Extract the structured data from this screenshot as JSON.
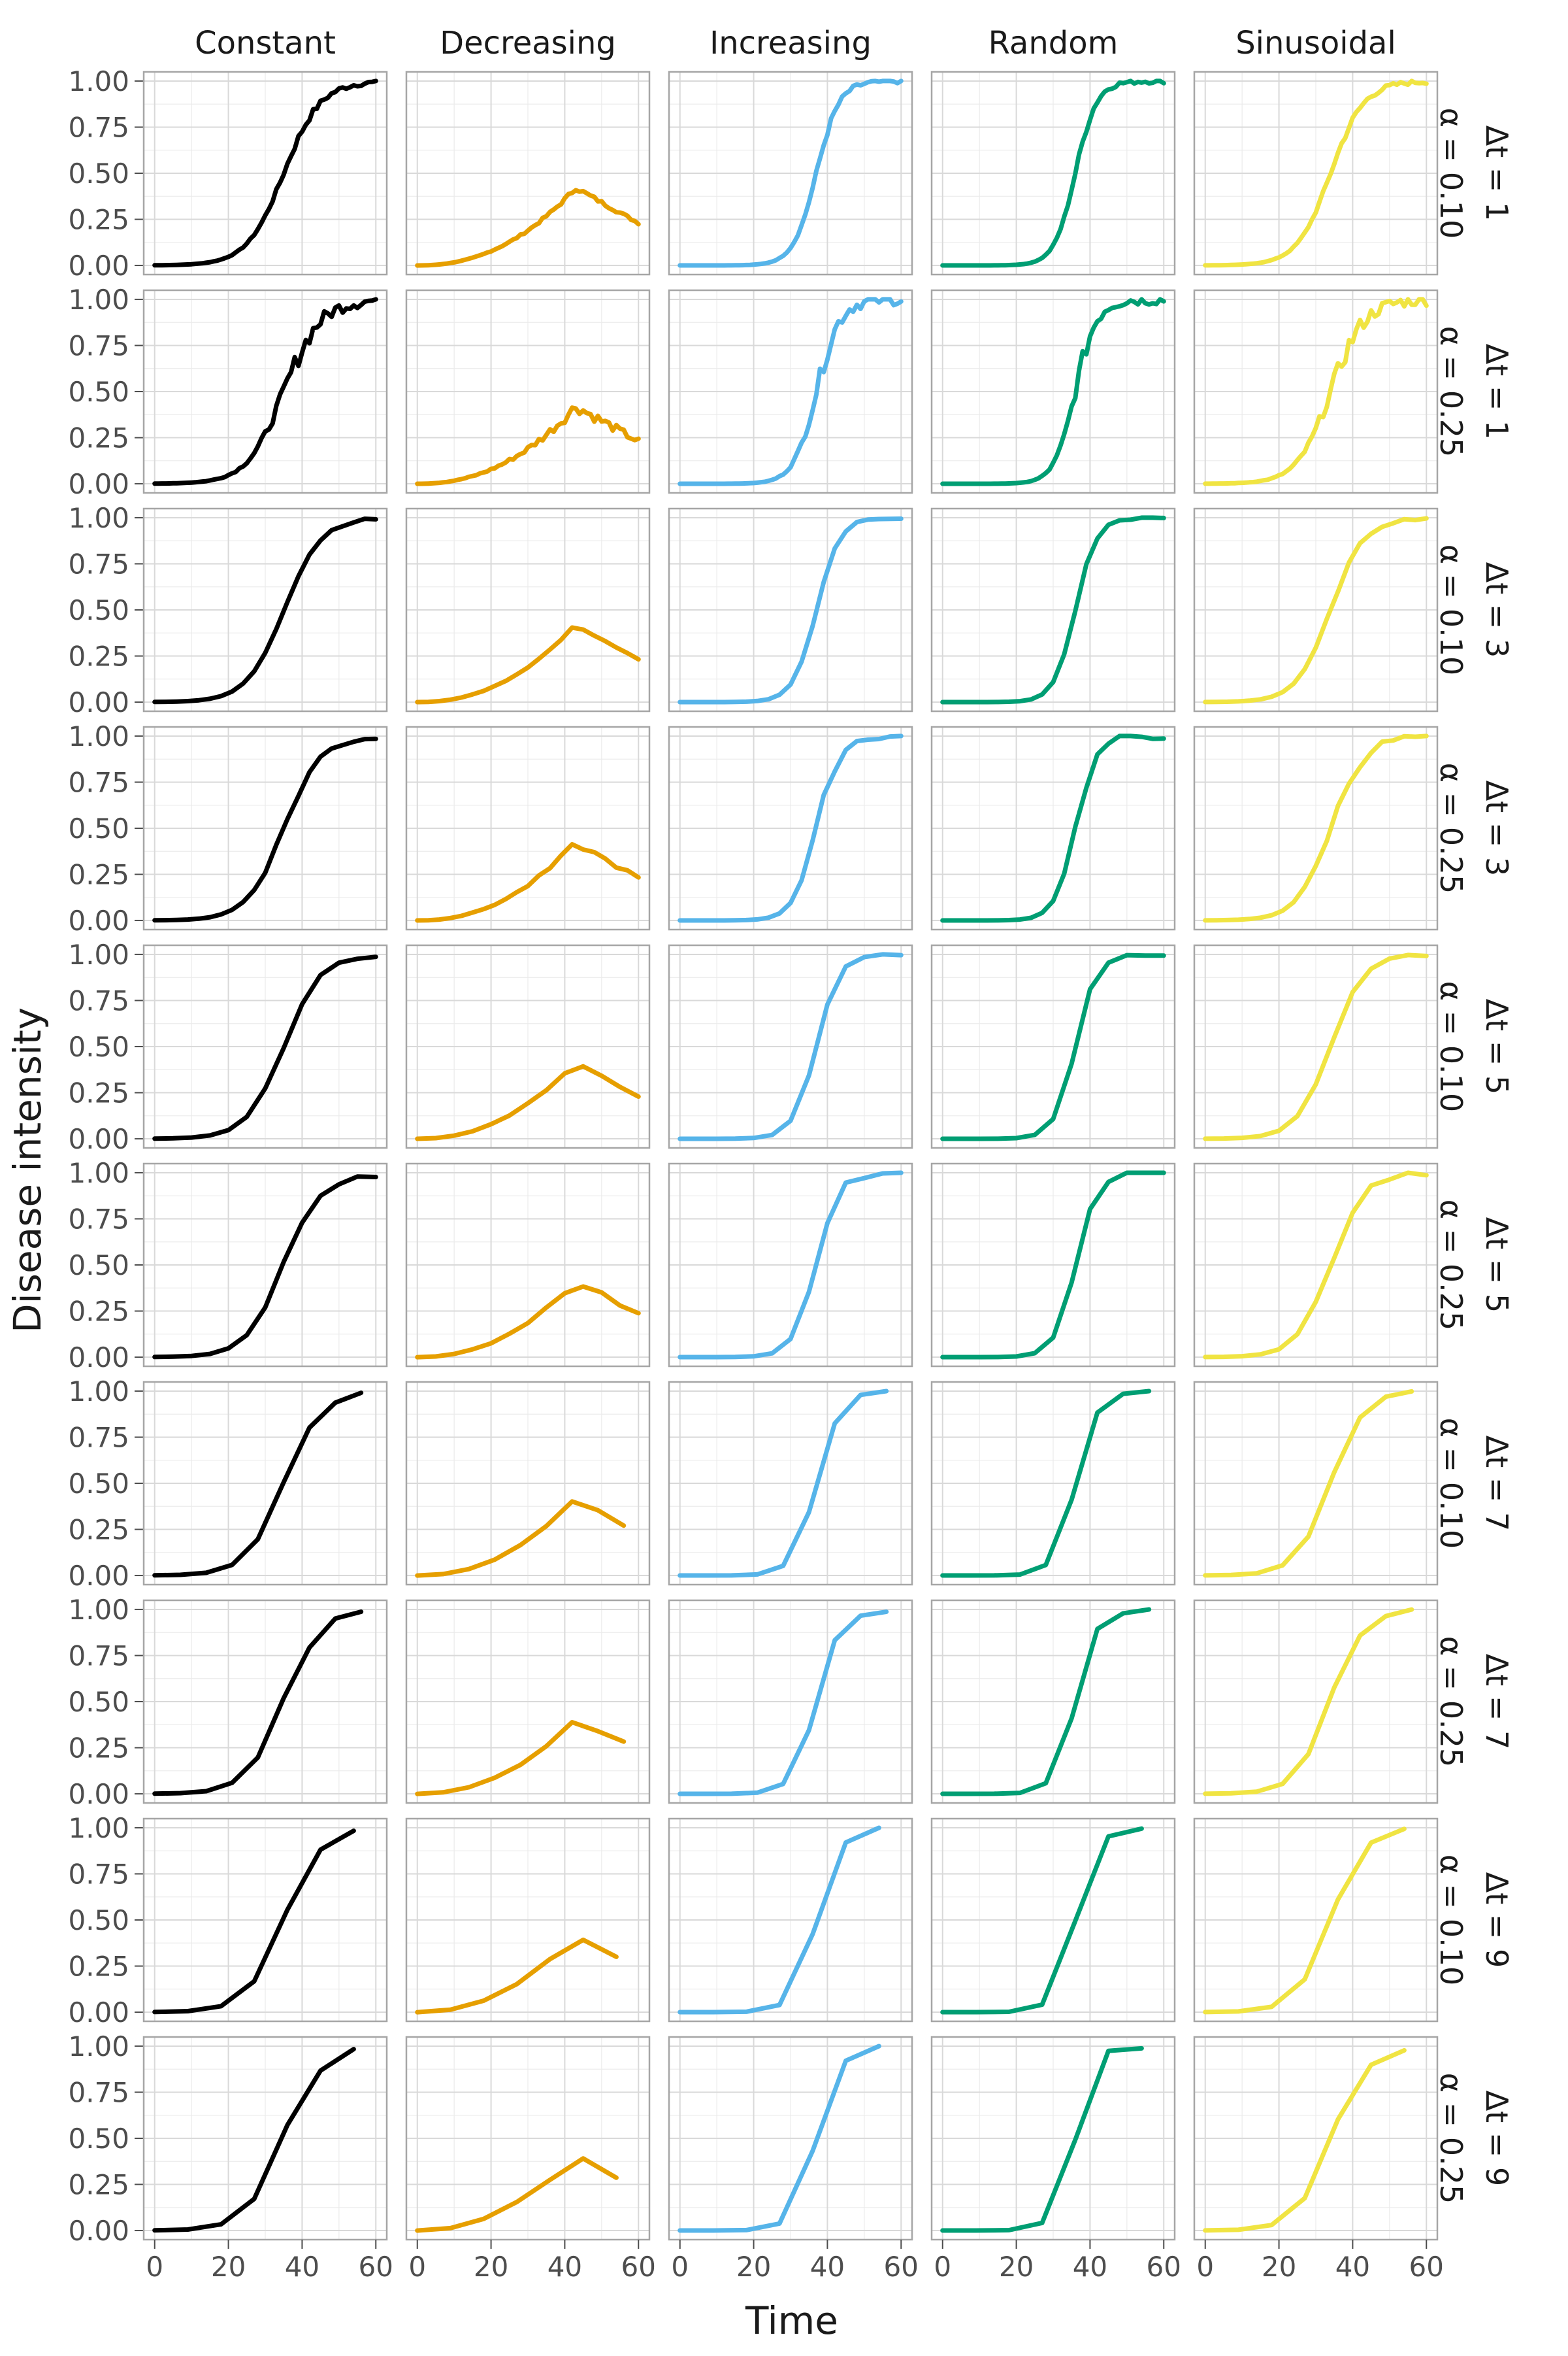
{
  "chart_data": {
    "type": "line",
    "title": "",
    "xlabel": "Time",
    "ylabel": "Disease intensity",
    "xlim": [
      0,
      60
    ],
    "ylim": [
      0,
      1
    ],
    "x_ticks": [
      "0",
      "20",
      "40",
      "60"
    ],
    "y_ticks": [
      "0.00",
      "0.25",
      "0.50",
      "0.75",
      "1.00"
    ],
    "grid": true,
    "legend": "none",
    "columns": [
      {
        "label": "Constant",
        "color": "#000000"
      },
      {
        "label": "Decreasing",
        "color": "#E69F00"
      },
      {
        "label": "Increasing",
        "color": "#56B4E9"
      },
      {
        "label": "Random",
        "color": "#009E73"
      },
      {
        "label": "Sinusoidal",
        "color": "#F0E442"
      }
    ],
    "rows": [
      {
        "dt_label": "Δt = 1",
        "alpha_label": "α = 0.10",
        "dt": 1,
        "alpha": 0.1
      },
      {
        "dt_label": "Δt = 1",
        "alpha_label": "α = 0.25",
        "dt": 1,
        "alpha": 0.25
      },
      {
        "dt_label": "Δt = 3",
        "alpha_label": "α = 0.10",
        "dt": 3,
        "alpha": 0.1
      },
      {
        "dt_label": "Δt = 3",
        "alpha_label": "α = 0.25",
        "dt": 3,
        "alpha": 0.25
      },
      {
        "dt_label": "Δt = 5",
        "alpha_label": "α = 0.10",
        "dt": 5,
        "alpha": 0.1
      },
      {
        "dt_label": "Δt = 5",
        "alpha_label": "α = 0.25",
        "dt": 5,
        "alpha": 0.25
      },
      {
        "dt_label": "Δt = 7",
        "alpha_label": "α = 0.10",
        "dt": 7,
        "alpha": 0.1
      },
      {
        "dt_label": "Δt = 7",
        "alpha_label": "α = 0.25",
        "dt": 7,
        "alpha": 0.25
      },
      {
        "dt_label": "Δt = 9",
        "alpha_label": "α = 0.10",
        "dt": 9,
        "alpha": 0.1
      },
      {
        "dt_label": "Δt = 9",
        "alpha_label": "α = 0.25",
        "dt": 9,
        "alpha": 0.25
      }
    ],
    "curve_shapes": {
      "Constant": {
        "midpoint": 35,
        "rate": 0.2,
        "max": 1.0,
        "end": 60
      },
      "Decreasing": {
        "peak_time": 43,
        "peak": 0.42,
        "start": 0.0,
        "end_value": 0.23,
        "end": 60
      },
      "Increasing": {
        "midpoint": 37,
        "rate": 0.32,
        "max": 1.0,
        "end": 60
      },
      "Random": {
        "midpoint": 36,
        "rate": 0.35,
        "max": 1.0,
        "end": 60
      },
      "Sinusoidal": {
        "midpoint": 34,
        "rate": 0.22,
        "max": 1.0,
        "end": 60
      }
    }
  }
}
